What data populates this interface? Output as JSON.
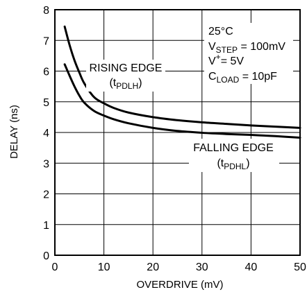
{
  "chart_data": {
    "type": "line",
    "xlabel": "OVERDRIVE (mV)",
    "ylabel": "DELAY (ns)",
    "xlim": [
      0,
      50
    ],
    "ylim": [
      0,
      8
    ],
    "x_ticks": [
      0,
      10,
      20,
      30,
      40,
      50
    ],
    "y_ticks": [
      0,
      1,
      2,
      3,
      4,
      5,
      6,
      7,
      8
    ],
    "grid": true,
    "series": [
      {
        "name": "RISING EDGE",
        "symbol": "t",
        "subscript": "PDLH",
        "x": [
          2,
          3,
          4,
          5,
          6,
          8,
          10,
          12,
          15,
          20,
          25,
          30,
          35,
          40,
          45,
          50
        ],
        "y": [
          7.45,
          6.85,
          6.35,
          5.95,
          5.6,
          5.15,
          4.95,
          4.8,
          4.65,
          4.5,
          4.4,
          4.33,
          4.28,
          4.23,
          4.19,
          4.15
        ]
      },
      {
        "name": "FALLING EDGE",
        "symbol": "t",
        "subscript": "PDHL",
        "x": [
          2,
          3,
          4,
          5,
          6,
          8,
          10,
          12,
          15,
          20,
          25,
          30,
          35,
          40,
          45,
          50
        ],
        "y": [
          6.22,
          5.85,
          5.5,
          5.2,
          4.97,
          4.7,
          4.55,
          4.43,
          4.3,
          4.15,
          4.05,
          3.99,
          3.95,
          3.92,
          3.88,
          3.83
        ]
      }
    ],
    "conditions": {
      "temperature": "25°C",
      "vstep_main": "V",
      "vstep_sub": "STEP",
      "vstep_value": " = 100mV",
      "vplus_main": "V",
      "vplus_sup": "+",
      "vplus_value": "= 5V",
      "cload_main": "C",
      "cload_sub": "LOAD",
      "cload_value": " = 10pF"
    }
  }
}
